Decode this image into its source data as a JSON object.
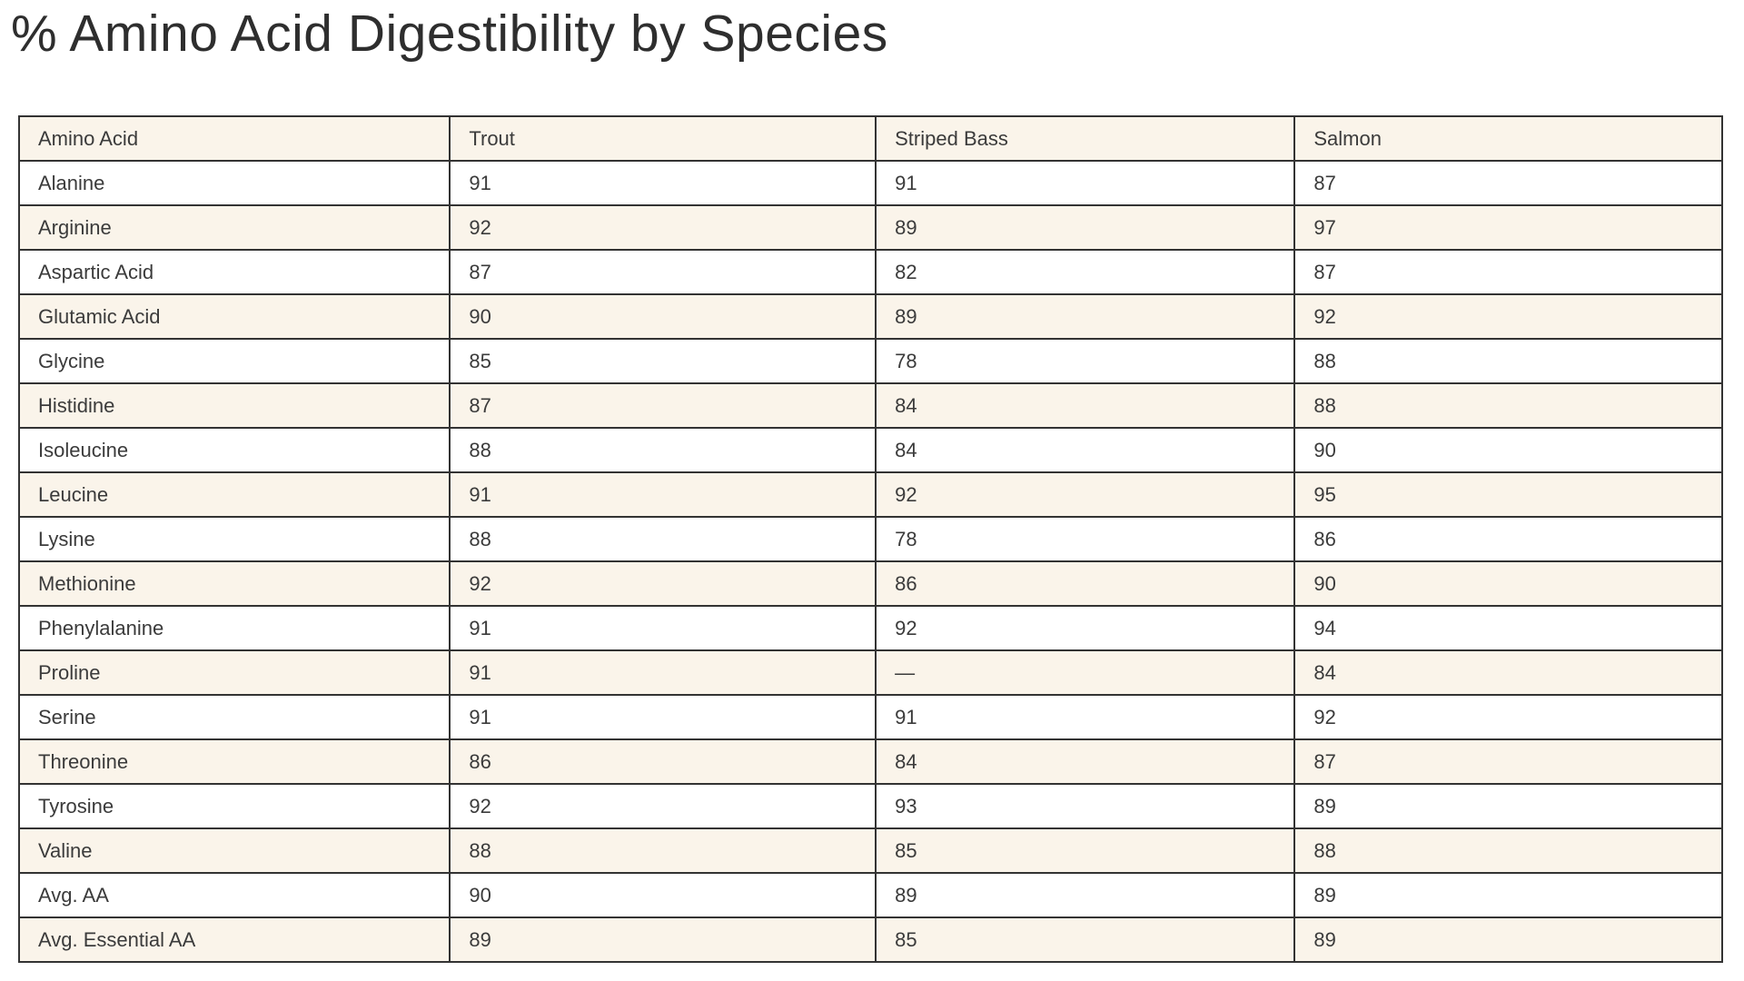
{
  "title": "% Amino Acid Digestibility by Species",
  "table": {
    "columns": [
      "Amino Acid",
      "Trout",
      "Striped Bass",
      "Salmon"
    ],
    "rows": [
      [
        "Alanine",
        "91",
        "91",
        "87"
      ],
      [
        "Arginine",
        "92",
        "89",
        "97"
      ],
      [
        "Aspartic Acid",
        "87",
        "82",
        "87"
      ],
      [
        "Glutamic Acid",
        "90",
        "89",
        "92"
      ],
      [
        "Glycine",
        "85",
        "78",
        "88"
      ],
      [
        "Histidine",
        "87",
        "84",
        "88"
      ],
      [
        "Isoleucine",
        "88",
        "84",
        "90"
      ],
      [
        "Leucine",
        "91",
        "92",
        "95"
      ],
      [
        "Lysine",
        "88",
        "78",
        "86"
      ],
      [
        "Methionine",
        "92",
        "86",
        "90"
      ],
      [
        "Phenylalanine",
        "91",
        "92",
        "94"
      ],
      [
        "Proline",
        "91",
        "—",
        "84"
      ],
      [
        "Serine",
        "91",
        "91",
        "92"
      ],
      [
        "Threonine",
        "86",
        "84",
        "87"
      ],
      [
        "Tyrosine",
        "92",
        "93",
        "89"
      ],
      [
        "Valine",
        "88",
        "85",
        "88"
      ],
      [
        "Avg. AA",
        "90",
        "89",
        "89"
      ],
      [
        "Avg. Essential AA",
        "89",
        "85",
        "89"
      ]
    ]
  },
  "chart_data": {
    "type": "table",
    "title": "% Amino Acid Digestibility by Species",
    "categories": [
      "Alanine",
      "Arginine",
      "Aspartic Acid",
      "Glutamic Acid",
      "Glycine",
      "Histidine",
      "Isoleucine",
      "Leucine",
      "Lysine",
      "Methionine",
      "Phenylalanine",
      "Proline",
      "Serine",
      "Threonine",
      "Tyrosine",
      "Valine",
      "Avg. AA",
      "Avg. Essential AA"
    ],
    "series": [
      {
        "name": "Trout",
        "values": [
          91,
          92,
          87,
          90,
          85,
          87,
          88,
          91,
          88,
          92,
          91,
          91,
          91,
          86,
          92,
          88,
          90,
          89
        ]
      },
      {
        "name": "Striped Bass",
        "values": [
          91,
          89,
          82,
          89,
          78,
          84,
          84,
          92,
          78,
          86,
          92,
          null,
          91,
          84,
          93,
          85,
          89,
          85
        ]
      },
      {
        "name": "Salmon",
        "values": [
          87,
          97,
          87,
          92,
          88,
          88,
          90,
          95,
          86,
          90,
          94,
          84,
          92,
          87,
          89,
          88,
          89,
          89
        ]
      }
    ],
    "value_unit": "percent",
    "missing_marker": "—"
  },
  "colors": {
    "stripe_background": "#faf4ea",
    "row_background": "#ffffff",
    "border": "#333333",
    "text": "#3b3b3b",
    "title_text": "#2e2e2e"
  }
}
